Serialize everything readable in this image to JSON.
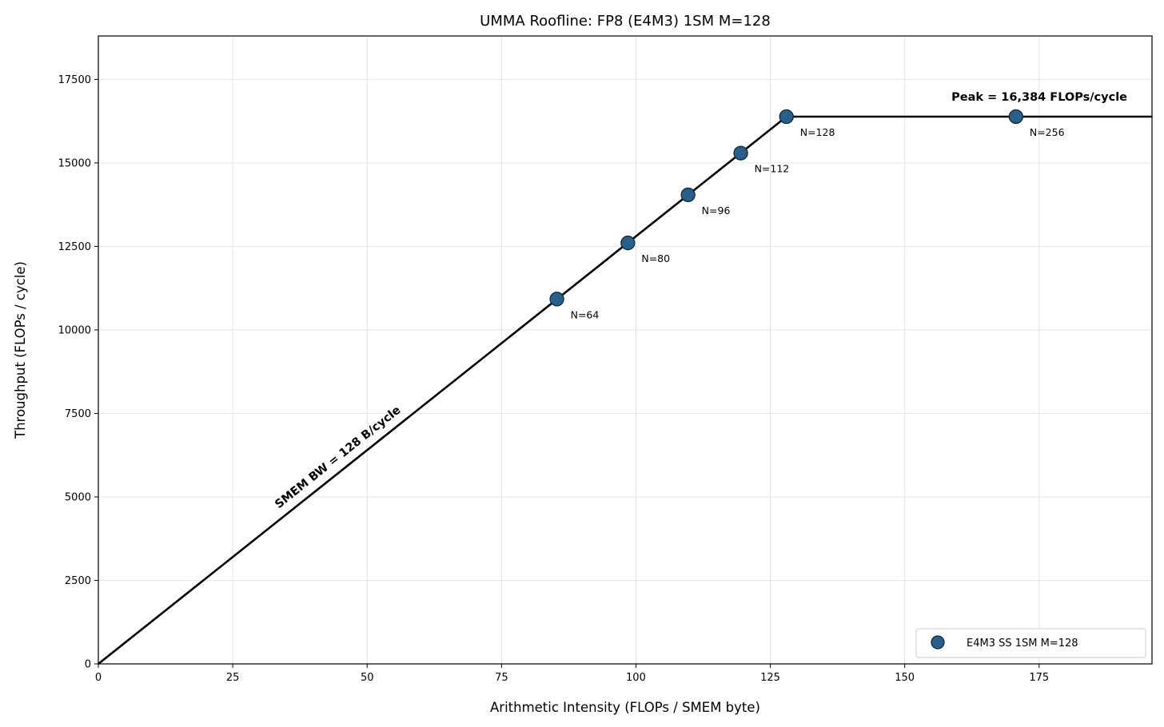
{
  "chart_data": {
    "type": "scatter",
    "title": "UMMA Roofline: FP8 (E4M3) 1SM M=128",
    "xlabel": "Arithmetic Intensity (FLOPs / SMEM byte)",
    "ylabel": "Throughput (FLOPs / cycle)",
    "xlim": [
      0,
      196
    ],
    "ylim": [
      0,
      18800
    ],
    "xticks": [
      0,
      25,
      50,
      75,
      100,
      125,
      150,
      175
    ],
    "yticks": [
      0,
      2500,
      5000,
      7500,
      10000,
      12500,
      15000,
      17500
    ],
    "grid": true,
    "legend_position": "bottom-right",
    "roofline": {
      "slope_bytes_per_cycle": 128,
      "peak": 16384,
      "ridge_x": 128,
      "points": [
        [
          0,
          0
        ],
        [
          128,
          16384
        ],
        [
          196,
          16384
        ]
      ],
      "slope_label": "SMEM BW = 128 B/cycle",
      "peak_label": "Peak = 16,384 FLOPs/cycle"
    },
    "series": [
      {
        "name": "E4M3 SS 1SM M=128",
        "color": "#2a5f8a",
        "points": [
          {
            "x": 85.3,
            "y": 10923,
            "label": "N=64"
          },
          {
            "x": 98.5,
            "y": 12603,
            "label": "N=80"
          },
          {
            "x": 109.7,
            "y": 14043,
            "label": "N=96"
          },
          {
            "x": 119.5,
            "y": 15293,
            "label": "N=112"
          },
          {
            "x": 128.0,
            "y": 16384,
            "label": "N=128"
          },
          {
            "x": 170.7,
            "y": 16384,
            "label": "N=256"
          }
        ]
      }
    ]
  }
}
